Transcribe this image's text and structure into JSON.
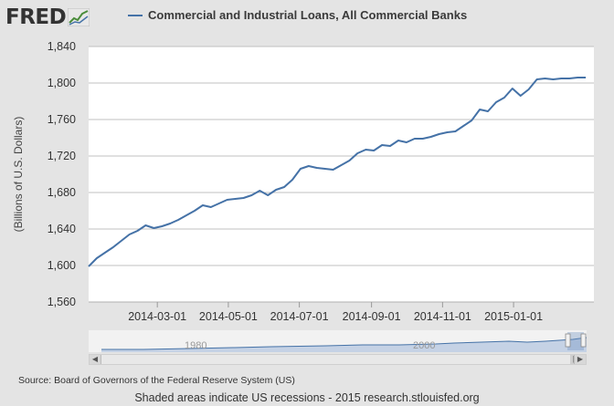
{
  "logo": {
    "text": "FRED"
  },
  "chart_data": {
    "type": "line",
    "title": "Commercial and Industrial Loans, All Commercial Banks",
    "xlabel": "",
    "ylabel": "(Billions of U.S. Dollars)",
    "ylim": [
      1560,
      1840
    ],
    "yticks": [
      1560,
      1600,
      1640,
      1680,
      1720,
      1760,
      1800,
      1840
    ],
    "ytick_labels": [
      "1,560",
      "1,600",
      "1,640",
      "1,680",
      "1,720",
      "1,760",
      "1,800",
      "1,840"
    ],
    "xlim": [
      "2014-01-01",
      "2015-03-11"
    ],
    "xticks": [
      "2014-03-01",
      "2014-05-01",
      "2014-07-01",
      "2014-09-01",
      "2014-11-01",
      "2015-01-01"
    ],
    "grid": true,
    "legend_position": "top",
    "series": [
      {
        "name": "Commercial and Industrial Loans, All Commercial Banks",
        "color": "#4572a7",
        "x": [
          "2014-01-01",
          "2014-01-08",
          "2014-01-15",
          "2014-01-22",
          "2014-01-29",
          "2014-02-05",
          "2014-02-12",
          "2014-02-19",
          "2014-02-26",
          "2014-03-05",
          "2014-03-12",
          "2014-03-19",
          "2014-03-26",
          "2014-04-02",
          "2014-04-09",
          "2014-04-16",
          "2014-04-23",
          "2014-04-30",
          "2014-05-07",
          "2014-05-14",
          "2014-05-21",
          "2014-05-28",
          "2014-06-04",
          "2014-06-11",
          "2014-06-18",
          "2014-06-25",
          "2014-07-02",
          "2014-07-09",
          "2014-07-16",
          "2014-07-23",
          "2014-07-30",
          "2014-08-06",
          "2014-08-13",
          "2014-08-20",
          "2014-08-27",
          "2014-09-03",
          "2014-09-10",
          "2014-09-17",
          "2014-09-24",
          "2014-10-01",
          "2014-10-08",
          "2014-10-15",
          "2014-10-22",
          "2014-10-29",
          "2014-11-05",
          "2014-11-12",
          "2014-11-19",
          "2014-11-26",
          "2014-12-03",
          "2014-12-10",
          "2014-12-17",
          "2014-12-24",
          "2014-12-31",
          "2015-01-07",
          "2015-01-14",
          "2015-01-21",
          "2015-01-28",
          "2015-02-04",
          "2015-02-11",
          "2015-02-18",
          "2015-02-25",
          "2015-03-04"
        ],
        "values": [
          1599,
          1608,
          1614,
          1620,
          1627,
          1634,
          1638,
          1644,
          1641,
          1643,
          1646,
          1650,
          1655,
          1660,
          1666,
          1664,
          1668,
          1672,
          1673,
          1674,
          1677,
          1682,
          1677,
          1683,
          1686,
          1694,
          1706,
          1709,
          1707,
          1706,
          1705,
          1710,
          1715,
          1723,
          1727,
          1726,
          1732,
          1731,
          1737,
          1735,
          1739,
          1739,
          1741,
          1744,
          1746,
          1747,
          1753,
          1759,
          1771,
          1769,
          1779,
          1784,
          1794,
          1786,
          1793,
          1804,
          1805,
          1804,
          1805,
          1805,
          1806,
          1806
        ]
      }
    ],
    "navigator": {
      "labels": [
        "1980",
        "2000"
      ]
    }
  },
  "source_note": "Source: Board of Governors of the Federal Reserve System (US)",
  "footer_note": "Shaded areas indicate US recessions - 2015 research.stlouisfed.org",
  "colors": {
    "line": "#4572a7",
    "grid": "#c0c0c0",
    "background": "#e4e4e4",
    "plot": "#ffffff"
  },
  "icons": {
    "logo_graph": "line-graph-icon",
    "scroll_left": "arrow-left-icon",
    "scroll_right": "arrow-right-icon",
    "scroll_grip": "grip-icon"
  }
}
